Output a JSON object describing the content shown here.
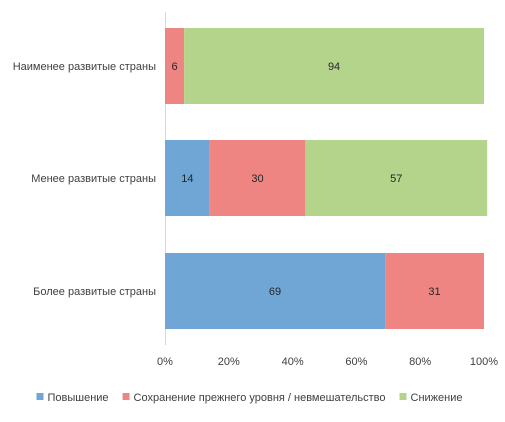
{
  "chart_data": {
    "type": "bar",
    "orientation": "horizontal",
    "stacked": "percent",
    "categories": [
      "Наименее развитые страны",
      "Менее развитые страны",
      "Более развитые страны"
    ],
    "series": [
      {
        "name": "Повышение",
        "values": [
          0,
          14,
          69
        ],
        "color": "#70a6d6"
      },
      {
        "name": "Сохранение прежнего уровня / невмешательство",
        "values": [
          6,
          30,
          31
        ],
        "color": "#ee8582"
      },
      {
        "name": "Снижение",
        "values": [
          94,
          57,
          0
        ],
        "color": "#b4d48c"
      }
    ],
    "xlim": [
      0,
      100
    ],
    "x_ticks": [
      "0%",
      "20%",
      "40%",
      "60%",
      "80%",
      "100%"
    ],
    "legend_position": "bottom",
    "grid": false
  }
}
